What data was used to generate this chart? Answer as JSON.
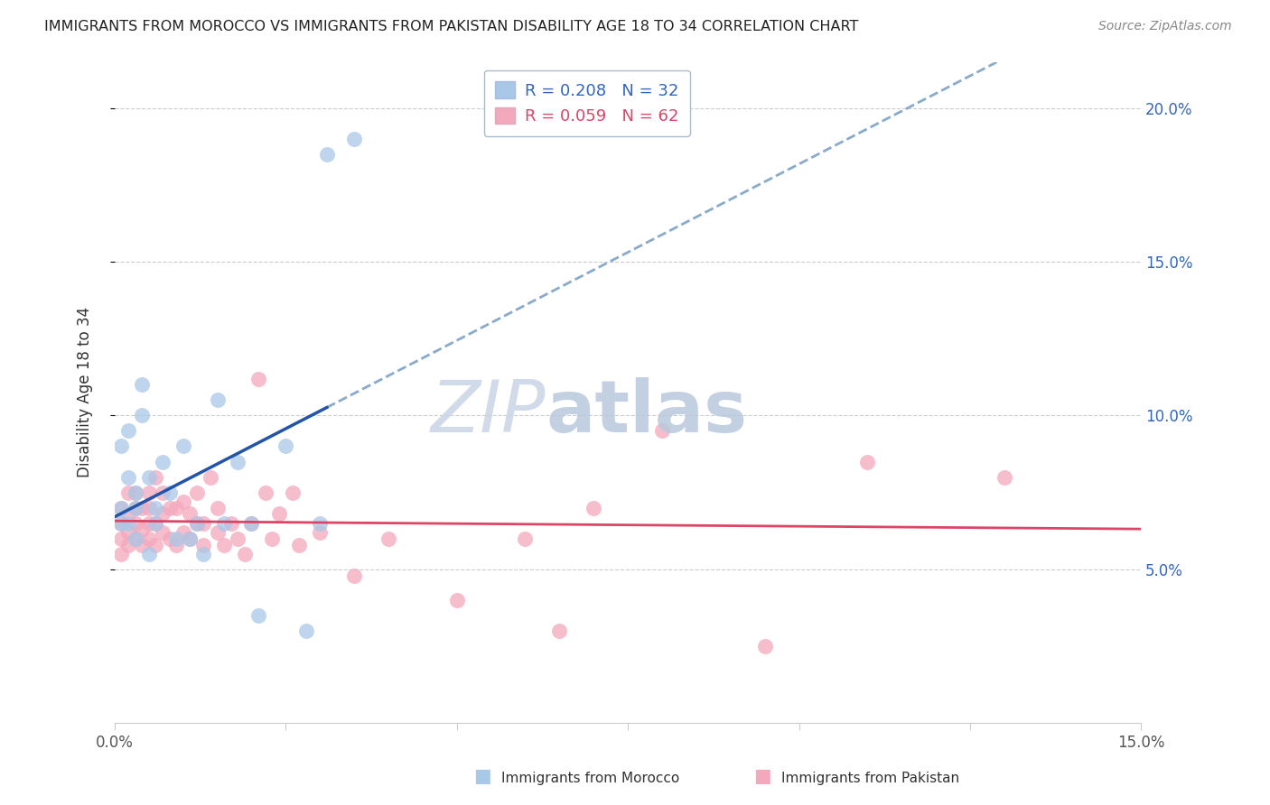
{
  "title": "IMMIGRANTS FROM MOROCCO VS IMMIGRANTS FROM PAKISTAN DISABILITY AGE 18 TO 34 CORRELATION CHART",
  "source": "Source: ZipAtlas.com",
  "ylabel_label": "Disability Age 18 to 34",
  "xlim": [
    0.0,
    0.15
  ],
  "ylim": [
    0.0,
    0.215
  ],
  "x_ticks": [
    0.0,
    0.025,
    0.05,
    0.075,
    0.1,
    0.125,
    0.15
  ],
  "x_tick_labels": [
    "0.0%",
    "",
    "",
    "",
    "",
    "",
    "15.0%"
  ],
  "y_ticks": [
    0.05,
    0.1,
    0.15,
    0.2
  ],
  "y_tick_right_labels": [
    "5.0%",
    "10.0%",
    "15.0%",
    "20.0%"
  ],
  "morocco_color": "#a8c8e8",
  "pakistan_color": "#f4a8bc",
  "morocco_line_color": "#2255aa",
  "pakistan_line_color": "#dd4466",
  "dashed_line_color": "#88aacc",
  "morocco_R": 0.208,
  "morocco_N": 32,
  "pakistan_R": 0.059,
  "pakistan_N": 62,
  "watermark_zip_color": "#c8d4e4",
  "watermark_atlas_color": "#b8c8dc",
  "morocco_x": [
    0.001,
    0.001,
    0.001,
    0.002,
    0.002,
    0.002,
    0.003,
    0.003,
    0.003,
    0.004,
    0.004,
    0.005,
    0.005,
    0.006,
    0.006,
    0.007,
    0.008,
    0.009,
    0.01,
    0.011,
    0.012,
    0.013,
    0.015,
    0.016,
    0.018,
    0.02,
    0.021,
    0.025,
    0.028,
    0.03,
    0.031,
    0.035
  ],
  "morocco_y": [
    0.065,
    0.07,
    0.09,
    0.08,
    0.065,
    0.095,
    0.07,
    0.06,
    0.075,
    0.1,
    0.11,
    0.08,
    0.055,
    0.07,
    0.065,
    0.085,
    0.075,
    0.06,
    0.09,
    0.06,
    0.065,
    0.055,
    0.105,
    0.065,
    0.085,
    0.065,
    0.035,
    0.09,
    0.03,
    0.065,
    0.185,
    0.19
  ],
  "pakistan_x": [
    0.001,
    0.001,
    0.001,
    0.001,
    0.002,
    0.002,
    0.002,
    0.002,
    0.003,
    0.003,
    0.003,
    0.003,
    0.004,
    0.004,
    0.004,
    0.005,
    0.005,
    0.005,
    0.005,
    0.006,
    0.006,
    0.006,
    0.007,
    0.007,
    0.007,
    0.008,
    0.008,
    0.009,
    0.009,
    0.01,
    0.01,
    0.011,
    0.011,
    0.012,
    0.012,
    0.013,
    0.013,
    0.014,
    0.015,
    0.015,
    0.016,
    0.017,
    0.018,
    0.019,
    0.02,
    0.021,
    0.022,
    0.023,
    0.024,
    0.026,
    0.027,
    0.03,
    0.035,
    0.04,
    0.05,
    0.06,
    0.065,
    0.07,
    0.08,
    0.095,
    0.11,
    0.13
  ],
  "pakistan_y": [
    0.055,
    0.06,
    0.065,
    0.07,
    0.058,
    0.062,
    0.068,
    0.075,
    0.06,
    0.065,
    0.07,
    0.075,
    0.058,
    0.063,
    0.07,
    0.06,
    0.065,
    0.07,
    0.075,
    0.058,
    0.065,
    0.08,
    0.062,
    0.068,
    0.075,
    0.06,
    0.07,
    0.058,
    0.07,
    0.062,
    0.072,
    0.06,
    0.068,
    0.065,
    0.075,
    0.058,
    0.065,
    0.08,
    0.062,
    0.07,
    0.058,
    0.065,
    0.06,
    0.055,
    0.065,
    0.112,
    0.075,
    0.06,
    0.068,
    0.075,
    0.058,
    0.062,
    0.048,
    0.06,
    0.04,
    0.06,
    0.03,
    0.07,
    0.095,
    0.025,
    0.085,
    0.08
  ]
}
